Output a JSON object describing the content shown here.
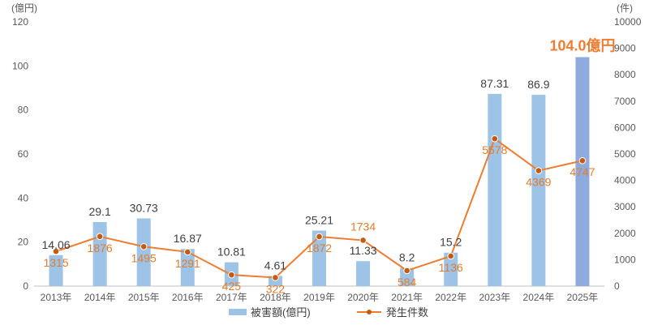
{
  "chart_data": {
    "type": "bar",
    "title": "",
    "categories": [
      "2013年",
      "2014年",
      "2015年",
      "2016年",
      "2017年",
      "2018年",
      "2019年",
      "2020年",
      "2021年",
      "2022年",
      "2023年",
      "2024年",
      "2025年"
    ],
    "series": [
      {
        "name": "被害額(億円)",
        "type": "bar",
        "axis": "left",
        "values": [
          14.06,
          29.1,
          30.73,
          16.87,
          10.81,
          4.61,
          25.21,
          11.33,
          8.2,
          15.2,
          87.31,
          86.9,
          104.0
        ],
        "labels": [
          "14.06",
          "29.1",
          "30.73",
          "16.87",
          "10.81",
          "4.61",
          "25.21",
          "11.33",
          "8.2",
          "15.2",
          "87.31",
          "86.9",
          "104.0億円"
        ],
        "color": "#9dc3e6",
        "highlight_color": "#8faadc"
      },
      {
        "name": "発生件数",
        "type": "line",
        "axis": "right",
        "values": [
          1315,
          1876,
          1495,
          1291,
          425,
          322,
          1872,
          1734,
          584,
          1136,
          5578,
          4369,
          4747
        ],
        "labels": [
          "1315",
          "1876",
          "1495",
          "1291",
          "425",
          "322",
          "1872",
          "1734",
          "584",
          "1136",
          "5578",
          "4369",
          "4747"
        ],
        "color": "#ed7d31"
      }
    ],
    "y_left": {
      "unit": "(億円)",
      "min": 0,
      "max": 120,
      "ticks": [
        0,
        20,
        40,
        60,
        80,
        100,
        120
      ]
    },
    "y_right": {
      "unit": "(件)",
      "min": 0,
      "max": 10000,
      "ticks": [
        0,
        1000,
        2000,
        3000,
        4000,
        5000,
        6000,
        7000,
        8000,
        9000,
        10000
      ]
    },
    "legend": {
      "position": "bottom",
      "bar_label": "被害額(億円)",
      "line_label": "発生件数"
    },
    "grid": false
  }
}
